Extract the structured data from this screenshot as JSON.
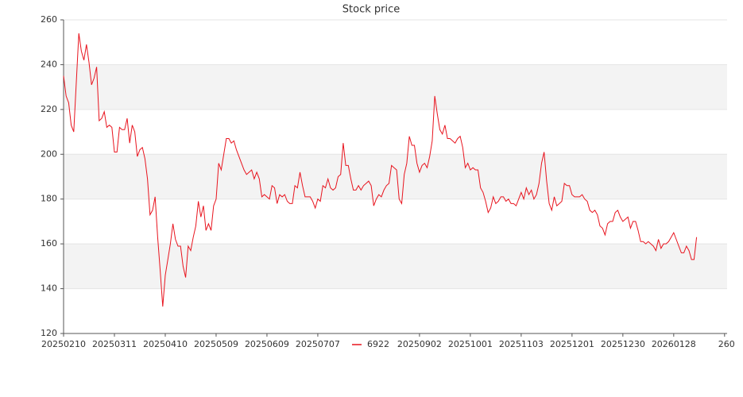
{
  "chart_data": {
    "type": "line",
    "title": "Stock price",
    "categories": [
      "20250210",
      null,
      null,
      null,
      null,
      null,
      null,
      null,
      null,
      null,
      null,
      null,
      null,
      null,
      null,
      null,
      null,
      null,
      null,
      null,
      "20250311",
      null,
      null,
      null,
      null,
      null,
      null,
      null,
      null,
      null,
      null,
      null,
      null,
      null,
      null,
      null,
      null,
      null,
      null,
      null,
      "20250410",
      null,
      null,
      null,
      null,
      null,
      null,
      null,
      null,
      null,
      null,
      null,
      null,
      null,
      null,
      null,
      null,
      null,
      null,
      null,
      "20250509",
      null,
      null,
      null,
      null,
      null,
      null,
      null,
      null,
      null,
      null,
      null,
      null,
      null,
      null,
      null,
      null,
      null,
      null,
      null,
      "20250609",
      null,
      null,
      null,
      null,
      null,
      null,
      null,
      null,
      null,
      null,
      null,
      null,
      null,
      null,
      null,
      null,
      null,
      null,
      null,
      "20250707",
      null,
      null,
      null,
      null,
      null,
      null,
      null,
      null,
      null,
      null,
      null,
      null,
      null,
      null,
      null,
      null,
      null,
      null,
      null,
      null,
      null,
      null,
      null,
      null,
      null,
      null,
      null,
      null,
      null,
      null,
      null,
      null,
      null,
      null,
      null,
      null,
      null,
      null,
      null,
      "20250902",
      null,
      null,
      null,
      null,
      null,
      null,
      null,
      null,
      null,
      null,
      null,
      null,
      null,
      null,
      null,
      null,
      null,
      null,
      null,
      "20251001",
      null,
      null,
      null,
      null,
      null,
      null,
      null,
      null,
      null,
      null,
      null,
      null,
      null,
      null,
      null,
      null,
      null,
      null,
      null,
      "20251103",
      null,
      null,
      null,
      null,
      null,
      null,
      null,
      null,
      null,
      null,
      null,
      null,
      null,
      null,
      null,
      null,
      null,
      null,
      null,
      "20251201",
      null,
      null,
      null,
      null,
      null,
      null,
      null,
      null,
      null,
      null,
      null,
      null,
      null,
      null,
      null,
      null,
      null,
      null,
      null,
      "20251230",
      null,
      null,
      null,
      null,
      null,
      null,
      null,
      null,
      null,
      null,
      null,
      null,
      null,
      null,
      null,
      null,
      null,
      null,
      null,
      "20260128",
      null,
      null,
      null,
      null,
      null,
      null,
      null,
      null,
      null,
      null,
      null,
      null,
      null,
      null,
      null,
      null,
      null,
      null,
      null,
      "260"
    ],
    "series": [
      {
        "name": "6922",
        "color": "#e8141e",
        "values": [
          235,
          226,
          223,
          213,
          210,
          232,
          254,
          246,
          242,
          249,
          241,
          231,
          234,
          239,
          215,
          216,
          219,
          212,
          213,
          212,
          201,
          201,
          212,
          211,
          211,
          216,
          205,
          213,
          210,
          199,
          202,
          203,
          198,
          189,
          173,
          175,
          181,
          163,
          148,
          132,
          146,
          153,
          160,
          169,
          162,
          159,
          159,
          150,
          145,
          159,
          157,
          163,
          168,
          179,
          172,
          177,
          166,
          169,
          166,
          177,
          180,
          196,
          193,
          200,
          207,
          207,
          205,
          206,
          202,
          199,
          196,
          193,
          191,
          192,
          193,
          189,
          192,
          189,
          181,
          182,
          181,
          180,
          186,
          185,
          178,
          182,
          181,
          182,
          179,
          178,
          178,
          186,
          185,
          192,
          186,
          181,
          181,
          181,
          179,
          176,
          180,
          179,
          186,
          185,
          189,
          185,
          184,
          185,
          190,
          191,
          205,
          195,
          195,
          189,
          184,
          184,
          186,
          184,
          186,
          187,
          188,
          186,
          177,
          180,
          182,
          181,
          184,
          186,
          187,
          195,
          194,
          193,
          180,
          178,
          191,
          196,
          208,
          204,
          204,
          196,
          192,
          195,
          196,
          194,
          199,
          206,
          226,
          218,
          211,
          209,
          213,
          207,
          207,
          206,
          205,
          207,
          208,
          203,
          194,
          196,
          193,
          194,
          193,
          193,
          185,
          183,
          179,
          174,
          176,
          181,
          178,
          179,
          181,
          181,
          179,
          180,
          178,
          178,
          177,
          180,
          183,
          180,
          185,
          182,
          184,
          180,
          182,
          187,
          196,
          201,
          188,
          178,
          175,
          181,
          177,
          178,
          179,
          187,
          186,
          186,
          182,
          181,
          181,
          181,
          182,
          180,
          179,
          175,
          174,
          175,
          173,
          168,
          167,
          164,
          169,
          170,
          170,
          174,
          175,
          172,
          170,
          171,
          172,
          167,
          170,
          170,
          166,
          161,
          161,
          160,
          161,
          160,
          159,
          157,
          162,
          158,
          160,
          160,
          161,
          163,
          165,
          162,
          159,
          156,
          156,
          159,
          157,
          153,
          153,
          163,
          null,
          null,
          null,
          null,
          null,
          null,
          null,
          null,
          null,
          null,
          null
        ]
      }
    ],
    "ylim": [
      120,
      260
    ],
    "yticks": [
      120,
      140,
      160,
      180,
      200,
      220,
      240,
      260
    ],
    "grid": true
  }
}
